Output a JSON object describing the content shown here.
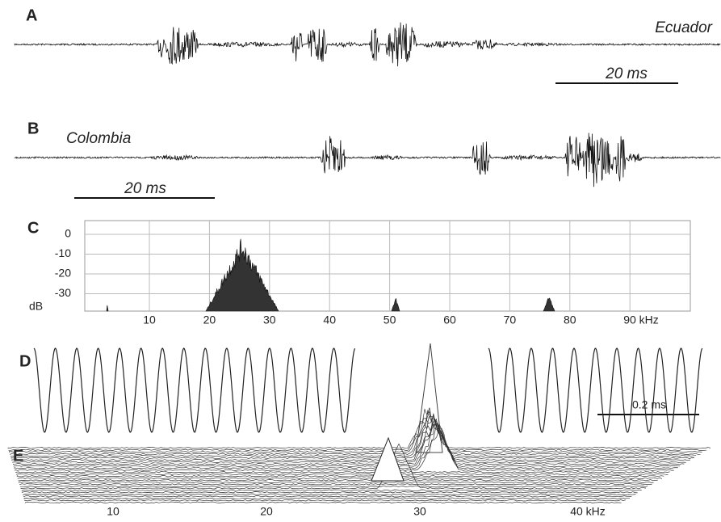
{
  "panels": [
    {
      "label": "A",
      "site": "Ecuador",
      "scale_bar": "20 ms"
    },
    {
      "label": "B",
      "site": "Colombia",
      "scale_bar": "20 ms"
    },
    {
      "label": "C",
      "y_unit": "dB",
      "yticks": [
        "0",
        "-10",
        "-20",
        "-30"
      ],
      "xticks": [
        "10",
        "20",
        "30",
        "40",
        "50",
        "60",
        "70",
        "80",
        "90 kHz"
      ]
    },
    {
      "label": "D",
      "scale_bar": "0.2 ms"
    },
    {
      "label": "E",
      "xticks": [
        "10",
        "20",
        "30",
        "40 kHz"
      ]
    }
  ]
}
